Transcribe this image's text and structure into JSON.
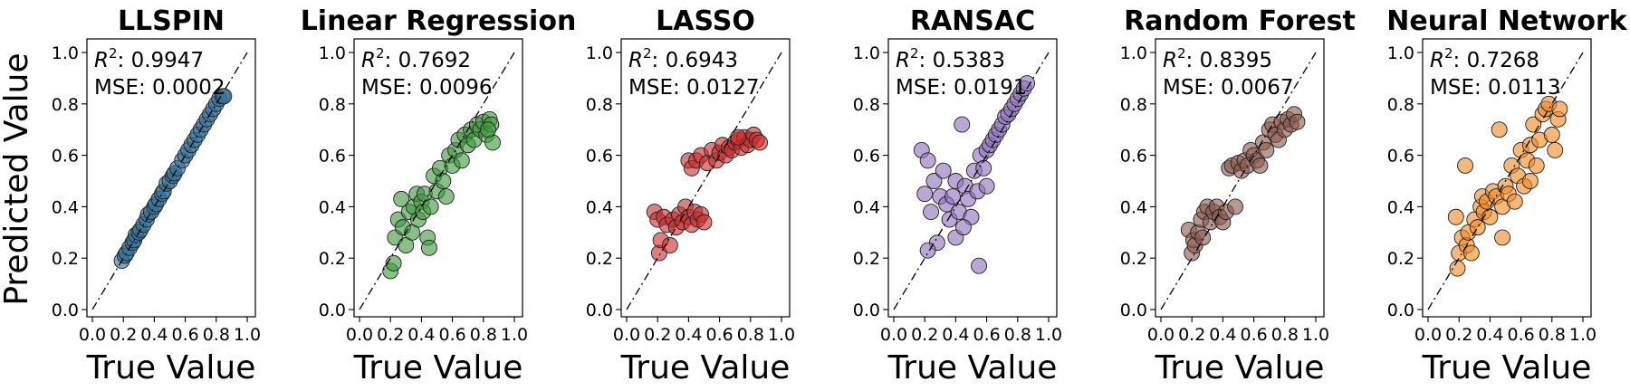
{
  "ylabel": "Predicted Value",
  "xlabel": "True Value",
  "ticks": [
    "0.0",
    "0.2",
    "0.4",
    "0.6",
    "0.8",
    "1.0"
  ],
  "chart_data": [
    {
      "type": "scatter",
      "title": "LLSPIN",
      "r2_label": "R",
      "r2_value": ": 0.9947",
      "mse": "MSE: 0.0002",
      "color": "#2f6d96",
      "xlim": [
        0,
        1
      ],
      "ylim": [
        0,
        1
      ],
      "x": [
        0.19,
        0.21,
        0.22,
        0.24,
        0.26,
        0.27,
        0.28,
        0.3,
        0.31,
        0.33,
        0.35,
        0.36,
        0.38,
        0.4,
        0.41,
        0.43,
        0.45,
        0.46,
        0.48,
        0.5,
        0.52,
        0.53,
        0.55,
        0.58,
        0.6,
        0.62,
        0.64,
        0.66,
        0.68,
        0.7,
        0.72,
        0.74,
        0.76,
        0.78,
        0.8,
        0.82,
        0.84,
        0.85
      ],
      "y": [
        0.19,
        0.21,
        0.22,
        0.24,
        0.26,
        0.27,
        0.29,
        0.3,
        0.31,
        0.33,
        0.35,
        0.37,
        0.38,
        0.4,
        0.41,
        0.43,
        0.45,
        0.46,
        0.49,
        0.5,
        0.52,
        0.53,
        0.55,
        0.58,
        0.6,
        0.62,
        0.64,
        0.66,
        0.68,
        0.7,
        0.72,
        0.74,
        0.76,
        0.78,
        0.8,
        0.82,
        0.83,
        0.83
      ]
    },
    {
      "type": "scatter",
      "title": "Linear Regression",
      "r2_label": "R",
      "r2_value": ": 0.7692",
      "mse": "MSE: 0.0096",
      "color": "#3f9a3f",
      "xlim": [
        0,
        1
      ],
      "ylim": [
        0,
        1
      ],
      "x": [
        0.2,
        0.22,
        0.23,
        0.25,
        0.27,
        0.28,
        0.3,
        0.32,
        0.34,
        0.35,
        0.37,
        0.38,
        0.4,
        0.41,
        0.42,
        0.44,
        0.45,
        0.46,
        0.48,
        0.5,
        0.52,
        0.54,
        0.56,
        0.58,
        0.6,
        0.62,
        0.64,
        0.66,
        0.68,
        0.7,
        0.72,
        0.74,
        0.76,
        0.78,
        0.8,
        0.82,
        0.84,
        0.85,
        0.86,
        0.83
      ],
      "y": [
        0.15,
        0.18,
        0.28,
        0.35,
        0.43,
        0.32,
        0.25,
        0.38,
        0.3,
        0.4,
        0.45,
        0.35,
        0.42,
        0.38,
        0.45,
        0.28,
        0.24,
        0.4,
        0.52,
        0.46,
        0.55,
        0.5,
        0.44,
        0.6,
        0.56,
        0.62,
        0.66,
        0.58,
        0.68,
        0.64,
        0.7,
        0.66,
        0.72,
        0.7,
        0.73,
        0.68,
        0.74,
        0.72,
        0.65,
        0.7
      ]
    },
    {
      "type": "scatter",
      "title": "LASSO",
      "r2_label": "R",
      "r2_value": ": 0.6943",
      "mse": "MSE: 0.0127",
      "color": "#cc2f2f",
      "xlim": [
        0,
        1
      ],
      "ylim": [
        0,
        1
      ],
      "x": [
        0.18,
        0.2,
        0.21,
        0.22,
        0.24,
        0.26,
        0.28,
        0.3,
        0.32,
        0.34,
        0.36,
        0.38,
        0.4,
        0.42,
        0.44,
        0.46,
        0.48,
        0.5,
        0.4,
        0.42,
        0.45,
        0.48,
        0.52,
        0.55,
        0.58,
        0.6,
        0.62,
        0.64,
        0.66,
        0.68,
        0.7,
        0.72,
        0.74,
        0.76,
        0.78,
        0.8,
        0.82,
        0.84,
        0.86,
        0.72
      ],
      "y": [
        0.38,
        0.35,
        0.22,
        0.27,
        0.36,
        0.33,
        0.25,
        0.35,
        0.32,
        0.37,
        0.34,
        0.4,
        0.36,
        0.33,
        0.38,
        0.35,
        0.37,
        0.34,
        0.58,
        0.55,
        0.58,
        0.6,
        0.57,
        0.62,
        0.58,
        0.61,
        0.64,
        0.6,
        0.63,
        0.62,
        0.65,
        0.66,
        0.63,
        0.67,
        0.64,
        0.66,
        0.68,
        0.66,
        0.65,
        0.67
      ]
    },
    {
      "type": "scatter",
      "title": "RANSAC",
      "r2_label": "R",
      "r2_value": ": 0.5383",
      "mse": "MSE: 0.0191",
      "color": "#8e73bc",
      "xlim": [
        0,
        1
      ],
      "ylim": [
        0,
        1
      ],
      "x": [
        0.18,
        0.2,
        0.22,
        0.24,
        0.26,
        0.28,
        0.3,
        0.32,
        0.34,
        0.36,
        0.38,
        0.4,
        0.42,
        0.44,
        0.46,
        0.48,
        0.5,
        0.52,
        0.54,
        0.56,
        0.58,
        0.6,
        0.62,
        0.64,
        0.66,
        0.68,
        0.7,
        0.72,
        0.74,
        0.76,
        0.78,
        0.8,
        0.82,
        0.84,
        0.86,
        0.4,
        0.55,
        0.22,
        0.45,
        0.6
      ],
      "y": [
        0.62,
        0.45,
        0.58,
        0.38,
        0.5,
        0.26,
        0.44,
        0.54,
        0.41,
        0.35,
        0.44,
        0.5,
        0.38,
        0.72,
        0.48,
        0.43,
        0.36,
        0.54,
        0.46,
        0.6,
        0.55,
        0.62,
        0.64,
        0.66,
        0.68,
        0.7,
        0.72,
        0.75,
        0.76,
        0.78,
        0.8,
        0.82,
        0.84,
        0.86,
        0.88,
        0.28,
        0.17,
        0.23,
        0.32,
        0.48
      ]
    },
    {
      "type": "scatter",
      "title": "Random Forest",
      "r2_label": "R",
      "r2_value": ": 0.8395",
      "mse": "MSE: 0.0067",
      "color": "#8b5a4e",
      "xlim": [
        0,
        1
      ],
      "ylim": [
        0,
        1
      ],
      "x": [
        0.18,
        0.2,
        0.21,
        0.22,
        0.24,
        0.26,
        0.27,
        0.28,
        0.3,
        0.32,
        0.34,
        0.36,
        0.38,
        0.4,
        0.42,
        0.44,
        0.46,
        0.48,
        0.5,
        0.52,
        0.54,
        0.56,
        0.58,
        0.6,
        0.62,
        0.64,
        0.66,
        0.68,
        0.7,
        0.72,
        0.74,
        0.76,
        0.78,
        0.8,
        0.82,
        0.84,
        0.86,
        0.88
      ],
      "y": [
        0.31,
        0.22,
        0.27,
        0.25,
        0.3,
        0.35,
        0.28,
        0.38,
        0.4,
        0.34,
        0.38,
        0.4,
        0.36,
        0.34,
        0.38,
        0.55,
        0.56,
        0.4,
        0.57,
        0.54,
        0.58,
        0.56,
        0.62,
        0.6,
        0.58,
        0.56,
        0.65,
        0.62,
        0.7,
        0.72,
        0.68,
        0.66,
        0.73,
        0.7,
        0.74,
        0.72,
        0.76,
        0.73
      ]
    },
    {
      "type": "scatter",
      "title": "Neural Network",
      "r2_label": "R",
      "r2_value": ": 0.7268",
      "mse": "MSE: 0.0113",
      "color": "#f08a24",
      "xlim": [
        0,
        1
      ],
      "ylim": [
        0,
        1
      ],
      "x": [
        0.18,
        0.19,
        0.2,
        0.22,
        0.24,
        0.25,
        0.26,
        0.28,
        0.3,
        0.32,
        0.34,
        0.35,
        0.36,
        0.38,
        0.4,
        0.42,
        0.44,
        0.46,
        0.48,
        0.5,
        0.52,
        0.54,
        0.56,
        0.58,
        0.6,
        0.62,
        0.64,
        0.66,
        0.68,
        0.7,
        0.72,
        0.74,
        0.76,
        0.78,
        0.8,
        0.82,
        0.84,
        0.85,
        0.48,
        0.66
      ],
      "y": [
        0.36,
        0.16,
        0.22,
        0.28,
        0.56,
        0.25,
        0.3,
        0.22,
        0.35,
        0.32,
        0.4,
        0.44,
        0.38,
        0.42,
        0.36,
        0.46,
        0.44,
        0.7,
        0.4,
        0.48,
        0.45,
        0.56,
        0.42,
        0.52,
        0.62,
        0.48,
        0.58,
        0.64,
        0.72,
        0.56,
        0.66,
        0.76,
        0.78,
        0.8,
        0.68,
        0.62,
        0.74,
        0.78,
        0.28,
        0.5
      ]
    }
  ]
}
